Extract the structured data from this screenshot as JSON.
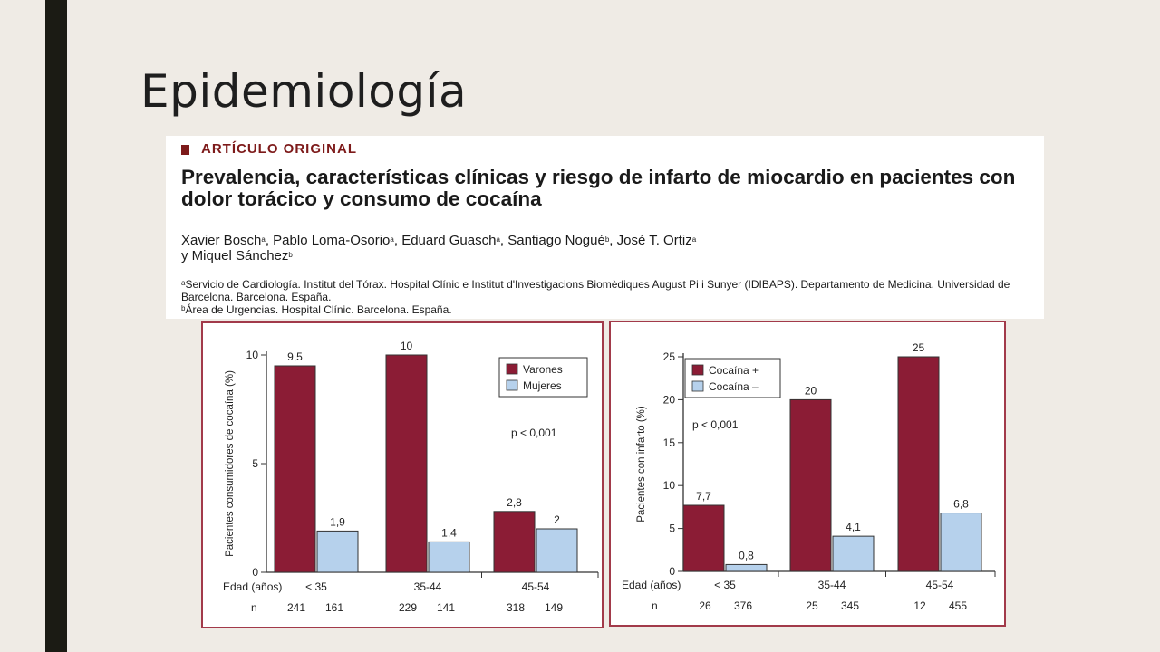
{
  "slide": {
    "title": "Epidemiología"
  },
  "article": {
    "label": "ARTÍCULO ORIGINAL",
    "title": "Prevalencia, características clínicas y riesgo de infarto de miocardio en pacientes con dolor torácico y consumo de cocaína",
    "authors": [
      {
        "name": "Xavier Bosch",
        "sup": "a"
      },
      {
        "name": "Pablo Loma-Osorio",
        "sup": "a"
      },
      {
        "name": "Eduard Guasch",
        "sup": "a"
      },
      {
        "name": "Santiago Nogué",
        "sup": "b"
      },
      {
        "name": "José T. Ortiz",
        "sup": "a"
      },
      {
        "name": "Miquel Sánchez",
        "sup": "b"
      }
    ],
    "affiliation_a_mark": "a",
    "affiliation_a": "Servicio de Cardiología. Institut del Tórax. Hospital Clínic e Institut d'Investigacions Biomèdiques August Pi i Sunyer (IDIBAPS). Departamento de Medicina. Universidad de Barcelona. Barcelona. España.",
    "affiliation_b_mark": "b",
    "affiliation_b": "Área de Urgencias. Hospital Clínic. Barcelona. España."
  },
  "colors": {
    "primary": "#8b1c35",
    "secondary": "#b6d1ec",
    "frame": "#a23a4a"
  },
  "chart_data": [
    {
      "type": "bar",
      "ylabel": "Pacientes consumidores de cocaína (%)",
      "ylim": [
        0,
        10
      ],
      "yticks": [
        0,
        5,
        10
      ],
      "xlabel": "Edad (años)",
      "categories": [
        "< 35",
        "35-44",
        "45-54"
      ],
      "series": [
        {
          "name": "Varones",
          "values": [
            9.5,
            10,
            2.8
          ],
          "labels": [
            "9,5",
            "10",
            "2,8"
          ]
        },
        {
          "name": "Mujeres",
          "values": [
            1.9,
            1.4,
            2
          ],
          "labels": [
            "1,9",
            "1,4",
            "2"
          ]
        }
      ],
      "n_label": "n",
      "n_values": [
        [
          "241",
          "161"
        ],
        [
          "229",
          "141"
        ],
        [
          "318",
          "149"
        ]
      ],
      "annotation": "p < 0,001",
      "legend": "top-right"
    },
    {
      "type": "bar",
      "ylabel": "Pacientes con infarto (%)",
      "ylim": [
        0,
        25
      ],
      "yticks": [
        0,
        5,
        10,
        15,
        20,
        25
      ],
      "xlabel": "Edad (años)",
      "categories": [
        "< 35",
        "35-44",
        "45-54"
      ],
      "series": [
        {
          "name": "Cocaína +",
          "values": [
            7.7,
            20,
            25
          ],
          "labels": [
            "7,7",
            "20",
            "25"
          ]
        },
        {
          "name": "Cocaína –",
          "values": [
            0.8,
            4.1,
            6.8
          ],
          "labels": [
            "0,8",
            "4,1",
            "6,8"
          ]
        }
      ],
      "n_label": "n",
      "n_values": [
        [
          "26",
          "376"
        ],
        [
          "25",
          "345"
        ],
        [
          "12",
          "455"
        ]
      ],
      "annotation": "p < 0,001",
      "legend": "top-left"
    }
  ]
}
